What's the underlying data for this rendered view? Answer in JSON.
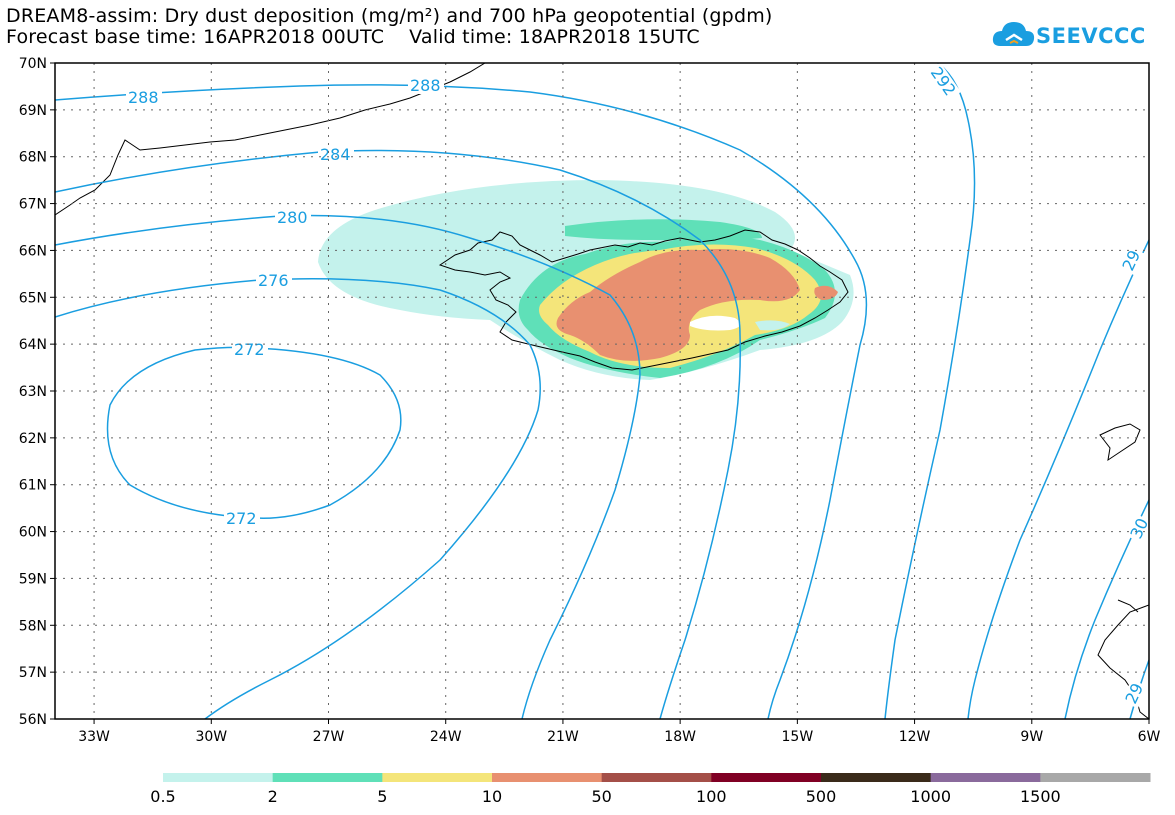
{
  "title": {
    "line1": "DREAM8-assim: Dry dust deposition (mg/m²) and 700 hPa geopotential (gpdm)",
    "line2": "Forecast base time: 16APR2018 00UTC    Valid time: 18APR2018 15UTC"
  },
  "logo": {
    "text": "SEEVCCC",
    "icon": "cloud-icon",
    "color": "#1a9ee0"
  },
  "map": {
    "lon_range": [
      -34,
      -6
    ],
    "lat_range": [
      56,
      70
    ],
    "lon_ticks": [
      "33W",
      "30W",
      "27W",
      "24W",
      "21W",
      "18W",
      "15W",
      "12W",
      "9W",
      "6W"
    ],
    "lat_ticks": [
      "70N",
      "69N",
      "68N",
      "67N",
      "66N",
      "65N",
      "64N",
      "63N",
      "62N",
      "61N",
      "60N",
      "59N",
      "58N",
      "57N",
      "56N"
    ],
    "contour_labels": [
      "288",
      "288",
      "284",
      "280",
      "276",
      "272",
      "272",
      "292",
      "29",
      "30",
      "29"
    ],
    "contour_color": "#1a9ee0"
  },
  "legend": {
    "labels": [
      "0.5",
      "2",
      "5",
      "10",
      "50",
      "100",
      "500",
      "1000",
      "1500"
    ],
    "colors": [
      "#c4f2ec",
      "#5fe0b8",
      "#f4e57a",
      "#e89070",
      "#a44f48",
      "#800024",
      "#3a2a1a",
      "#8a6a9c",
      "#a8a8a8"
    ]
  }
}
